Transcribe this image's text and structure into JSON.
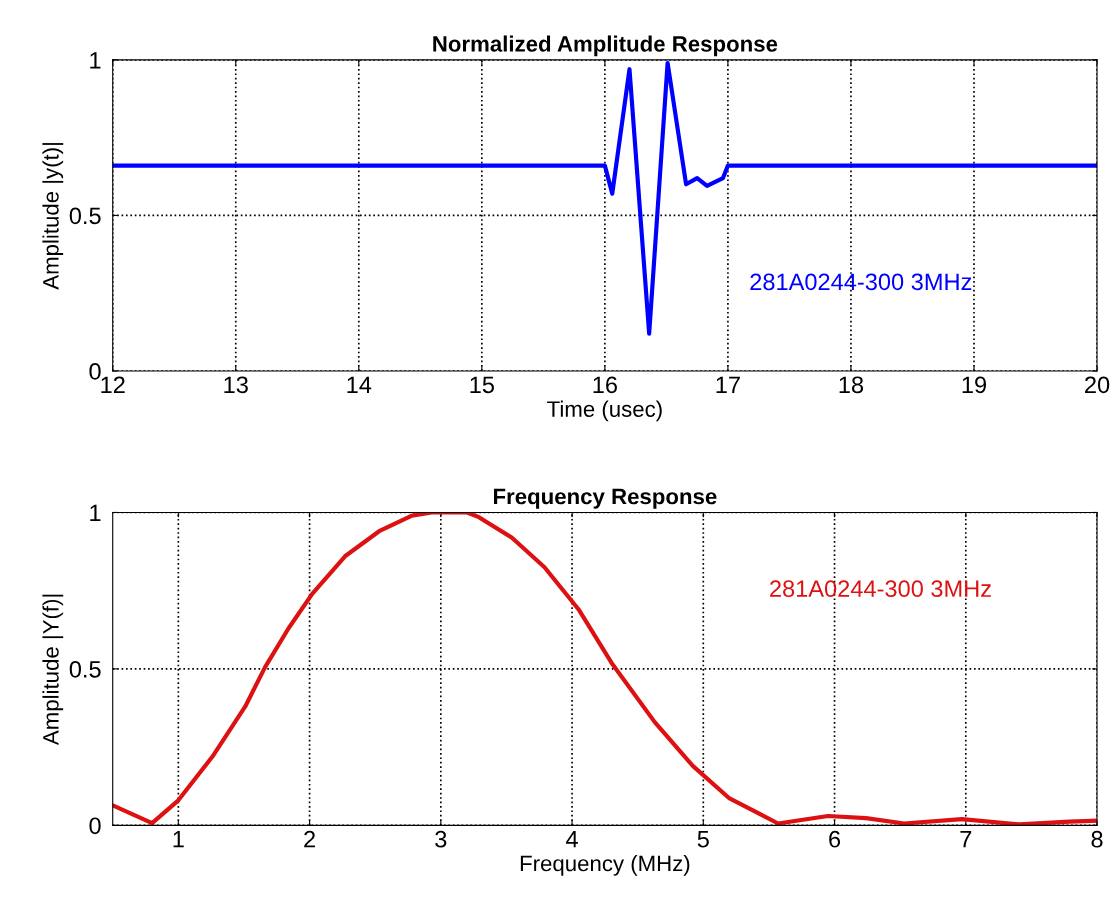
{
  "chart_data": [
    {
      "type": "line",
      "title": "Normalized Amplitude Response",
      "xlabel": "Time (usec)",
      "ylabel": "Amplitude |y(t)|",
      "series": [
        {
          "color": "#0000ff",
          "x": [
            12,
            16.0,
            16.06,
            16.2,
            16.36,
            16.51,
            16.66,
            16.75,
            16.83,
            16.96,
            17.0,
            20
          ],
          "values": [
            0.66,
            0.66,
            0.57,
            0.97,
            0.12,
            0.99,
            0.6,
            0.62,
            0.595,
            0.62,
            0.66,
            0.66
          ]
        }
      ],
      "xlim": [
        12,
        20
      ],
      "xticks": [
        12,
        13,
        14,
        15,
        16,
        17,
        18,
        19,
        20
      ],
      "ylim": [
        0,
        1
      ],
      "yticks": [
        0,
        0.5,
        1
      ],
      "grid": true,
      "line_style": "solid",
      "annotations": [
        "281A0244-300 3MHz"
      ]
    },
    {
      "type": "line",
      "title": "Frequency Response",
      "xlabel": "Frequency (MHz)",
      "ylabel": "Amplitude |Y(f)|",
      "series": [
        {
          "color": "#dd1111",
          "x": [
            0.5,
            0.8,
            1.0,
            1.26,
            1.51,
            1.66,
            1.84,
            2.02,
            2.27,
            2.53,
            2.78,
            2.93,
            3.2,
            3.29,
            3.54,
            3.79,
            4.05,
            4.3,
            4.63,
            4.92,
            5.2,
            5.57,
            5.95,
            6.24,
            6.53,
            6.97,
            7.41,
            7.79,
            8.0
          ],
          "values": [
            0.064,
            0.007,
            0.08,
            0.22,
            0.38,
            0.505,
            0.63,
            0.74,
            0.86,
            0.94,
            0.99,
            1.0,
            1.0,
            0.985,
            0.92,
            0.825,
            0.69,
            0.52,
            0.33,
            0.19,
            0.086,
            0.006,
            0.03,
            0.023,
            0.006,
            0.02,
            0.003,
            0.012,
            0.015
          ]
        }
      ],
      "xlim": [
        0.5,
        8
      ],
      "xticks": [
        1,
        2,
        3,
        4,
        5,
        6,
        7,
        8
      ],
      "ylim": [
        0,
        1
      ],
      "yticks": [
        0,
        0.5,
        1
      ],
      "grid": true,
      "line_style": "solid",
      "annotations": [
        "281A0244-300 3MHz"
      ]
    }
  ]
}
